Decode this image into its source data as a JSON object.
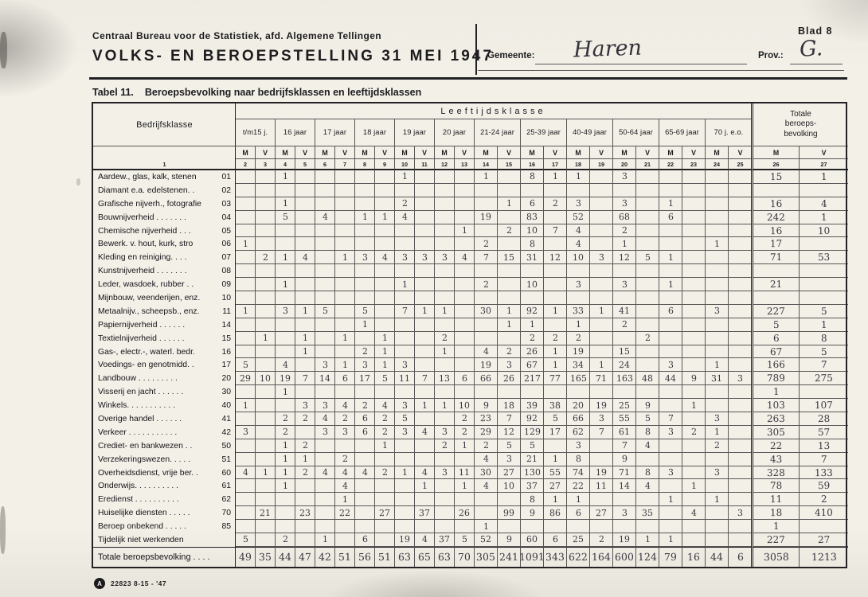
{
  "page": {
    "agency": "Centraal Bureau voor de Statistiek, afd. Algemene Tellingen",
    "title": "VOLKS- EN BEROEPSTELLING 31 MEI 1947",
    "gemeente_label": "Gemeente:",
    "gemeente_value": "Haren",
    "prov_label": "Prov.:",
    "prov_value": "G.",
    "blad": "Blad 8",
    "caption_no": "Tabel 11.",
    "caption_text": "Beroepsbevolking naar bedrijfsklassen en leeftijdsklassen",
    "footer_code": "22823 8-15 - '47",
    "logo_glyph": "A"
  },
  "table": {
    "corner_label": "Bedrijfsklasse",
    "age_band_label": "Leeftijdsklasse",
    "totals_header_lines": [
      "Totale",
      "beroeps-",
      "bevolking"
    ],
    "age_groups": [
      "t/m15 j.",
      "16 jaar",
      "17 jaar",
      "18 jaar",
      "19 jaar",
      "20 jaar",
      "21-24 jaar",
      "25-39 jaar",
      "40-49 jaar",
      "50-64 jaar",
      "65-69 jaar",
      "70 j. e.o."
    ],
    "mv_labels": [
      "M",
      "V"
    ],
    "corner_col_number": "1",
    "col_numbers": [
      "2",
      "3",
      "4",
      "5",
      "6",
      "7",
      "8",
      "9",
      "10",
      "11",
      "12",
      "13",
      "14",
      "15",
      "16",
      "17",
      "18",
      "19",
      "20",
      "21",
      "22",
      "23",
      "24",
      "25"
    ],
    "total_col_numbers": [
      "26",
      "27"
    ],
    "rows": [
      {
        "label": "Aardew., glas, kalk, stenen",
        "code": "01",
        "values": [
          "",
          "",
          "1",
          "",
          "",
          "",
          "",
          "",
          "1",
          "",
          "",
          "",
          "1",
          "",
          "8",
          "1",
          "1",
          "",
          "3",
          "",
          "",
          "",
          "",
          ""
        ],
        "m": "15",
        "v": "1"
      },
      {
        "label": "Diamant e.a. edelstenen. .",
        "code": "02",
        "values": [
          "",
          "",
          "",
          "",
          "",
          "",
          "",
          "",
          "",
          "",
          "",
          "",
          "",
          "",
          "",
          "",
          "",
          "",
          "",
          "",
          "",
          "",
          "",
          ""
        ],
        "m": "",
        "v": ""
      },
      {
        "label": "Grafische nijverh., fotografie",
        "code": "03",
        "values": [
          "",
          "",
          "1",
          "",
          "",
          "",
          "",
          "",
          "2",
          "",
          "",
          "",
          "",
          "1",
          "6",
          "2",
          "3",
          "",
          "3",
          "",
          "1",
          "",
          "",
          ""
        ],
        "m": "16",
        "v": "4"
      },
      {
        "label": "Bouwnijverheid . . . . . . .",
        "code": "04",
        "values": [
          "",
          "",
          "5",
          "",
          "4",
          "",
          "1",
          "1",
          "4",
          "",
          "",
          "",
          "19",
          "",
          "83",
          "",
          "52",
          "",
          "68",
          "",
          "6",
          "",
          "",
          ""
        ],
        "m": "242",
        "v": "1"
      },
      {
        "label": "Chemische nijverheid . . .",
        "code": "05",
        "values": [
          "",
          "",
          "",
          "",
          "",
          "",
          "",
          "",
          "",
          "",
          "",
          "1",
          "",
          "2",
          "10",
          "7",
          "4",
          "",
          "2",
          "",
          "",
          "",
          "",
          ""
        ],
        "m": "16",
        "v": "10"
      },
      {
        "label": "Bewerk. v. hout, kurk, stro",
        "code": "06",
        "values": [
          "1",
          "",
          "",
          "",
          "",
          "",
          "",
          "",
          "",
          "",
          "",
          "",
          "2",
          "",
          "8",
          "",
          "4",
          "",
          "1",
          "",
          "",
          "",
          "1",
          ""
        ],
        "m": "17",
        "v": ""
      },
      {
        "label": "Kleding en reiniging. . . .",
        "code": "07",
        "values": [
          "",
          "2",
          "1",
          "4",
          "",
          "1",
          "3",
          "4",
          "3",
          "3",
          "3",
          "4",
          "7",
          "15",
          "31",
          "12",
          "10",
          "3",
          "12",
          "5",
          "1",
          "",
          "",
          ""
        ],
        "m": "71",
        "v": "53"
      },
      {
        "label": "Kunstnijverheid . . . . . . .",
        "code": "08",
        "values": [
          "",
          "",
          "",
          "",
          "",
          "",
          "",
          "",
          "",
          "",
          "",
          "",
          "",
          "",
          "",
          "",
          "",
          "",
          "",
          "",
          "",
          "",
          "",
          ""
        ],
        "m": "",
        "v": ""
      },
      {
        "label": "Leder, wasdoek, rubber . .",
        "code": "09",
        "values": [
          "",
          "",
          "1",
          "",
          "",
          "",
          "",
          "",
          "1",
          "",
          "",
          "",
          "2",
          "",
          "10",
          "",
          "3",
          "",
          "3",
          "",
          "1",
          "",
          "",
          ""
        ],
        "m": "21",
        "v": ""
      },
      {
        "label": "Mijnbouw, veenderijen, enz.",
        "code": "10",
        "values": [
          "",
          "",
          "",
          "",
          "",
          "",
          "",
          "",
          "",
          "",
          "",
          "",
          "",
          "",
          "",
          "",
          "",
          "",
          "",
          "",
          "",
          "",
          "",
          ""
        ],
        "m": "",
        "v": ""
      },
      {
        "label": "Metaalnijv., scheepsb., enz.",
        "code": "11",
        "values": [
          "1",
          "",
          "3",
          "1",
          "5",
          "",
          "5",
          "",
          "7",
          "1",
          "1",
          "",
          "30",
          "1",
          "92",
          "1",
          "33",
          "1",
          "41",
          "",
          "6",
          "",
          "3",
          ""
        ],
        "m": "227",
        "v": "5"
      },
      {
        "label": "Papiernijverheid . . . . . .",
        "code": "14",
        "values": [
          "",
          "",
          "",
          "",
          "",
          "",
          "1",
          "",
          "",
          "",
          "",
          "",
          "",
          "1",
          "1",
          "",
          "1",
          "",
          "2",
          "",
          "",
          "",
          "",
          ""
        ],
        "m": "5",
        "v": "1"
      },
      {
        "label": "Textielnijverheid . . . . . .",
        "code": "15",
        "values": [
          "",
          "1",
          "",
          "1",
          "",
          "1",
          "",
          "1",
          "",
          "",
          "2",
          "",
          "",
          "",
          "2",
          "2",
          "2",
          "",
          "",
          "2",
          "",
          "",
          "",
          ""
        ],
        "m": "6",
        "v": "8"
      },
      {
        "label": "Gas-, electr.-, waterl. bedr.",
        "code": "16",
        "values": [
          "",
          "",
          "",
          "1",
          "",
          "",
          "2",
          "1",
          "",
          "",
          "1",
          "",
          "4",
          "2",
          "26",
          "1",
          "19",
          "",
          "15",
          "",
          "",
          "",
          "",
          ""
        ],
        "m": "67",
        "v": "5"
      },
      {
        "label": "Voedings- en genotmidd. .",
        "code": "17",
        "values": [
          "5",
          "",
          "4",
          "",
          "3",
          "1",
          "3",
          "1",
          "3",
          "",
          "",
          "",
          "19",
          "3",
          "67",
          "1",
          "34",
          "1",
          "24",
          "",
          "3",
          "",
          "1",
          ""
        ],
        "m": "166",
        "v": "7"
      },
      {
        "label": "Landbouw . . . . . . . . .",
        "code": "20",
        "values": [
          "29",
          "10",
          "19",
          "7",
          "14",
          "6",
          "17",
          "5",
          "11",
          "7",
          "13",
          "6",
          "66",
          "26",
          "217",
          "77",
          "165",
          "71",
          "163",
          "48",
          "44",
          "9",
          "31",
          "3"
        ],
        "m": "789",
        "v": "275"
      },
      {
        "label": "Visserij en jacht . . . . . .",
        "code": "30",
        "values": [
          "",
          "",
          "1",
          "",
          "",
          "",
          "",
          "",
          "",
          "",
          "",
          "",
          "",
          "",
          "",
          "",
          "",
          "",
          "",
          "",
          "",
          "",
          "",
          ""
        ],
        "m": "1",
        "v": ""
      },
      {
        "label": "Winkels. . . . . . . . . . .",
        "code": "40",
        "values": [
          "1",
          "",
          "",
          "3",
          "3",
          "4",
          "2",
          "4",
          "3",
          "1",
          "1",
          "10",
          "9",
          "18",
          "39",
          "38",
          "20",
          "19",
          "25",
          "9",
          "",
          "1",
          "",
          ""
        ],
        "m": "103",
        "v": "107"
      },
      {
        "label": "Overige handel . . . . . .",
        "code": "41",
        "values": [
          "",
          "",
          "2",
          "2",
          "4",
          "2",
          "6",
          "2",
          "5",
          "",
          "",
          "2",
          "23",
          "7",
          "92",
          "5",
          "66",
          "3",
          "55",
          "5",
          "7",
          "",
          "3",
          ""
        ],
        "m": "263",
        "v": "28"
      },
      {
        "label": "Verkeer . . . . . . . . . . .",
        "code": "42",
        "values": [
          "3",
          "",
          "2",
          "",
          "3",
          "3",
          "6",
          "2",
          "3",
          "4",
          "3",
          "2",
          "29",
          "12",
          "129",
          "17",
          "62",
          "7",
          "61",
          "8",
          "3",
          "2",
          "1",
          ""
        ],
        "m": "305",
        "v": "57"
      },
      {
        "label": "Crediet- en bankwezen . .",
        "code": "50",
        "values": [
          "",
          "",
          "1",
          "2",
          "",
          "",
          "",
          "1",
          "",
          "",
          "2",
          "1",
          "2",
          "5",
          "5",
          "",
          "3",
          "",
          "7",
          "4",
          "",
          "",
          "2",
          ""
        ],
        "m": "22",
        "v": "13"
      },
      {
        "label": "Verzekeringswezen. . . . .",
        "code": "51",
        "values": [
          "",
          "",
          "1",
          "1",
          "",
          "2",
          "",
          "",
          "",
          "",
          "",
          "",
          "4",
          "3",
          "21",
          "1",
          "8",
          "",
          "9",
          "",
          "",
          "",
          "",
          ""
        ],
        "m": "43",
        "v": "7"
      },
      {
        "label": "Overheidsdienst, vrije ber. .",
        "code": "60",
        "values": [
          "4",
          "1",
          "1",
          "2",
          "4",
          "4",
          "4",
          "2",
          "1",
          "4",
          "3",
          "11",
          "30",
          "27",
          "130",
          "55",
          "74",
          "19",
          "71",
          "8",
          "3",
          "",
          "3",
          ""
        ],
        "m": "328",
        "v": "133"
      },
      {
        "label": "Onderwijs. . . . . . . . . .",
        "code": "61",
        "values": [
          "",
          "",
          "1",
          "",
          "",
          "4",
          "",
          "",
          "",
          "1",
          "",
          "1",
          "4",
          "10",
          "37",
          "27",
          "22",
          "11",
          "14",
          "4",
          "",
          "1",
          "",
          ""
        ],
        "m": "78",
        "v": "59"
      },
      {
        "label": "Eredienst . . . . . . . . . .",
        "code": "62",
        "values": [
          "",
          "",
          "",
          "",
          "",
          "1",
          "",
          "",
          "",
          "",
          "",
          "",
          "",
          "",
          "8",
          "1",
          "1",
          "",
          "",
          "",
          "1",
          "",
          "1",
          ""
        ],
        "m": "11",
        "v": "2"
      },
      {
        "label": "Huiselijke diensten . . . . .",
        "code": "70",
        "values": [
          "",
          "21",
          "",
          "23",
          "",
          "22",
          "",
          "27",
          "",
          "37",
          "",
          "26",
          "",
          "99",
          "9",
          "86",
          "6",
          "27",
          "3",
          "35",
          "",
          "4",
          "",
          "3"
        ],
        "m": "18",
        "v": "410"
      },
      {
        "label": "Beroep onbekend . . . . .",
        "code": "85",
        "values": [
          "",
          "",
          "",
          "",
          "",
          "",
          "",
          "",
          "",
          "",
          "",
          "",
          "1",
          "",
          "",
          "",
          "",
          "",
          "",
          "",
          "",
          "",
          "",
          ""
        ],
        "m": "1",
        "v": ""
      },
      {
        "label": "Tijdelijk niet werkenden",
        "code": "",
        "values": [
          "5",
          "",
          "2",
          "",
          "1",
          "",
          "6",
          "",
          "19",
          "4",
          "37",
          "5",
          "52",
          "9",
          "60",
          "6",
          "25",
          "2",
          "19",
          "1",
          "1",
          "",
          "",
          ""
        ],
        "m": "227",
        "v": "27"
      }
    ],
    "total_row": {
      "label": "Totale beroepsbevolking . . . .",
      "code": "",
      "values": [
        "49",
        "35",
        "44",
        "47",
        "42",
        "51",
        "56",
        "51",
        "63",
        "65",
        "63",
        "70",
        "305",
        "241",
        "1091",
        "343",
        "622",
        "164",
        "600",
        "124",
        "79",
        "16",
        "44",
        "6"
      ],
      "m": "3058",
      "v": "1213"
    }
  }
}
